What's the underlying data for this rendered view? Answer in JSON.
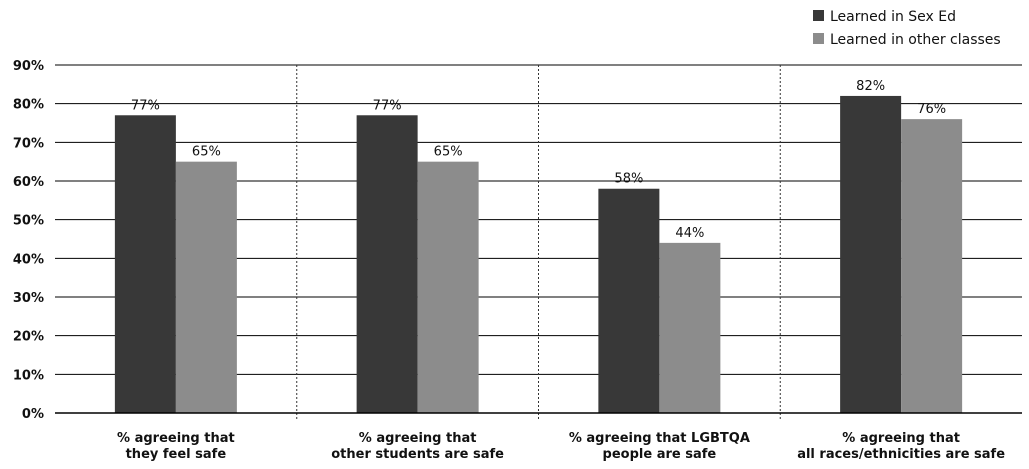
{
  "chart_data": {
    "type": "bar",
    "categories": [
      [
        "% agreeing that",
        "they feel safe"
      ],
      [
        "% agreeing that",
        "other students are safe"
      ],
      [
        "% agreeing that LGBTQA",
        "people are safe"
      ],
      [
        "% agreeing that",
        "all races/ethnicities are safe"
      ]
    ],
    "series": [
      {
        "name": "Learned in Sex Ed",
        "values": [
          77,
          77,
          58,
          82
        ],
        "labels": [
          "77%",
          "77%",
          "58%",
          "82%"
        ],
        "color": "#383838"
      },
      {
        "name": "Learned in other classes",
        "values": [
          65,
          65,
          44,
          76
        ],
        "labels": [
          "65%",
          "65%",
          "44%",
          "76%"
        ],
        "color": "#8c8c8c"
      }
    ],
    "ylim": [
      0,
      90
    ],
    "yticks": [
      0,
      10,
      20,
      30,
      40,
      50,
      60,
      70,
      80,
      90
    ],
    "ytick_labels": [
      "0%",
      "10%",
      "20%",
      "30%",
      "40%",
      "50%",
      "60%",
      "70%",
      "80%",
      "90%"
    ],
    "xlabel": "",
    "ylabel": "",
    "title": "",
    "grid": "horizontal",
    "legend_position": "top-right"
  }
}
